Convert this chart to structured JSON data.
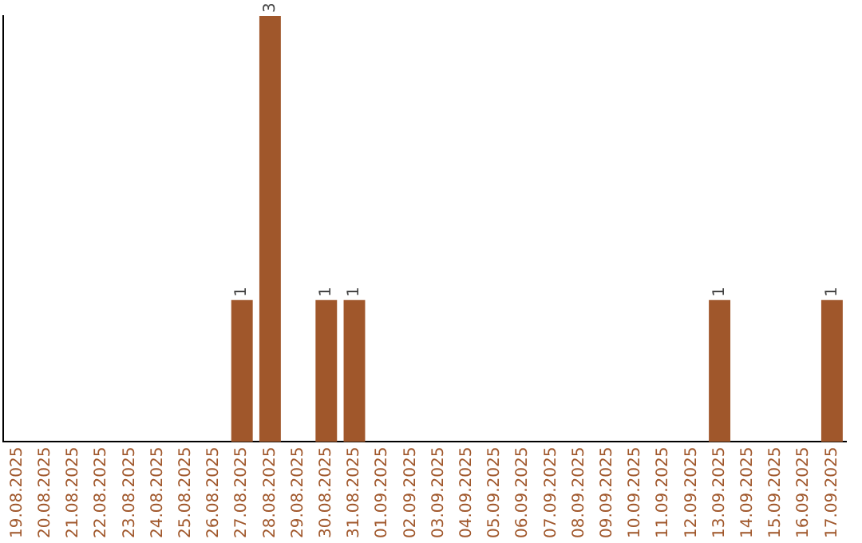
{
  "chart_data": {
    "type": "bar",
    "categories": [
      "19.08.2025",
      "20.08.2025",
      "21.08.2025",
      "22.08.2025",
      "23.08.2025",
      "24.08.2025",
      "25.08.2025",
      "26.08.2025",
      "27.08.2025",
      "28.08.2025",
      "29.08.2025",
      "30.08.2025",
      "31.08.2025",
      "01.09.2025",
      "02.09.2025",
      "03.09.2025",
      "04.09.2025",
      "05.09.2025",
      "06.09.2025",
      "07.09.2025",
      "08.09.2025",
      "09.09.2025",
      "10.09.2025",
      "11.09.2025",
      "12.09.2025",
      "13.09.2025",
      "14.09.2025",
      "15.09.2025",
      "16.09.2025",
      "17.09.2025"
    ],
    "values": [
      0,
      0,
      0,
      0,
      0,
      0,
      0,
      0,
      1,
      3,
      0,
      1,
      1,
      0,
      0,
      0,
      0,
      0,
      0,
      0,
      0,
      0,
      0,
      0,
      0,
      1,
      0,
      0,
      0,
      1
    ],
    "value_labels": [
      null,
      null,
      null,
      null,
      null,
      null,
      null,
      null,
      "1",
      "3",
      null,
      "1",
      "1",
      null,
      null,
      null,
      null,
      null,
      null,
      null,
      null,
      null,
      null,
      null,
      null,
      "1",
      null,
      null,
      null,
      "1"
    ],
    "color": "#a0572b",
    "ylim": [
      0,
      3
    ],
    "tick_labels": "x",
    "grid": false,
    "legend": false
  }
}
